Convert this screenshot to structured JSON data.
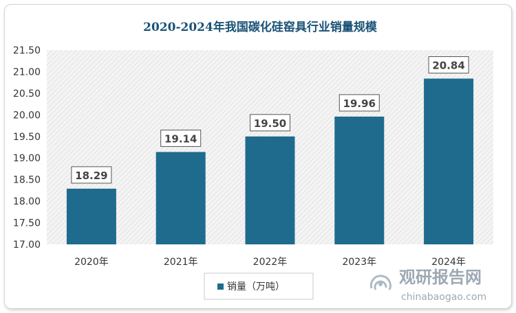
{
  "chart_data": {
    "type": "bar",
    "title": "2020-2024年我国碳化硅窑具行业销量规模",
    "categories": [
      "2020年",
      "2021年",
      "2022年",
      "2023年",
      "2024年"
    ],
    "series": [
      {
        "name": "销量（万吨）",
        "values": [
          18.29,
          19.14,
          19.5,
          19.96,
          20.84
        ],
        "color": "#1f6b8e"
      }
    ],
    "data_labels": [
      "18.29",
      "19.14",
      "19.50",
      "19.96",
      "20.84"
    ],
    "y_ticks": [
      "17.00",
      "17.50",
      "18.00",
      "18.50",
      "19.00",
      "19.50",
      "20.00",
      "20.50",
      "21.00",
      "21.50"
    ],
    "ylim": [
      17.0,
      21.5
    ],
    "grid": false,
    "plot_background": "hatched-light-gray",
    "legend_position": "bottom"
  },
  "colors": {
    "title": "#1a5276",
    "bar": "#1f6b8e",
    "text": "#333333",
    "label_border": "#555555"
  },
  "watermark": {
    "title": "观研报告网",
    "url": "chinabaogao.com"
  }
}
